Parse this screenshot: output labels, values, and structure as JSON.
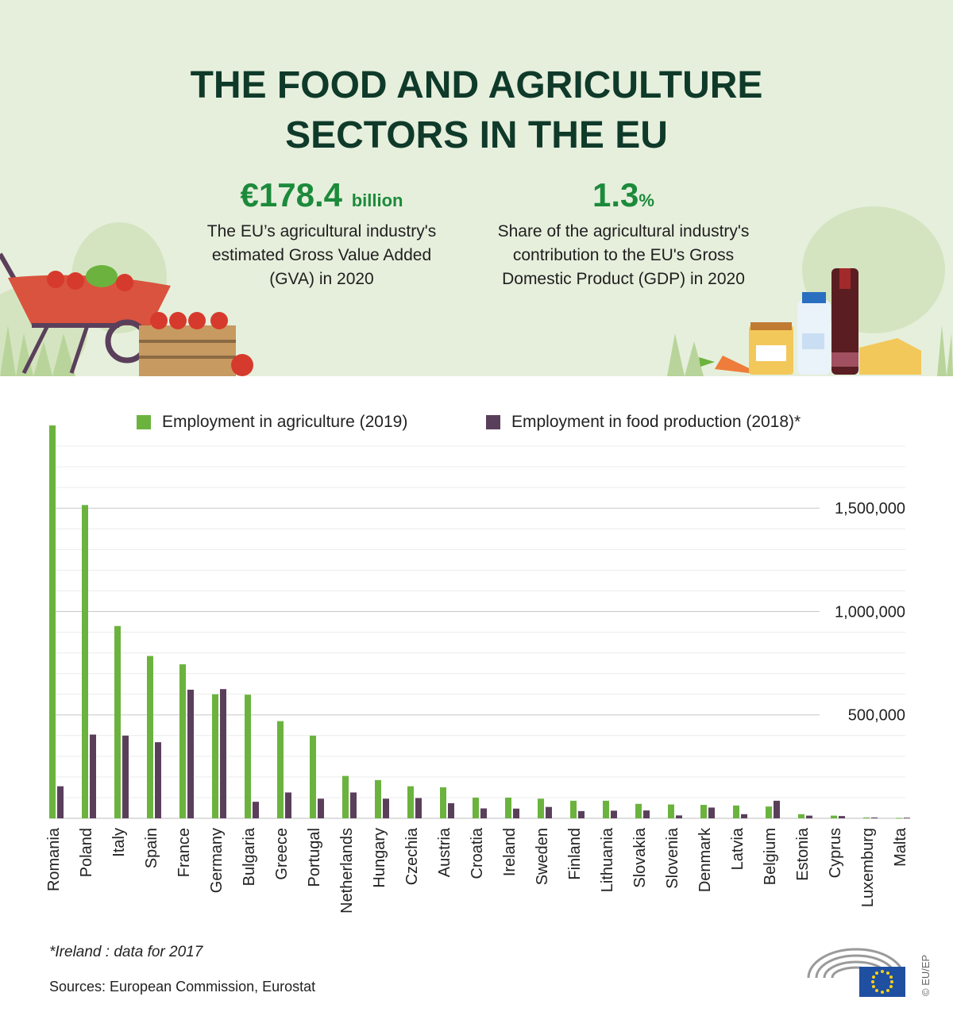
{
  "title_line1": "THE FOOD AND AGRICULTURE",
  "title_line2": "SECTORS IN THE EU",
  "stat_gva": {
    "value": "€178.4",
    "unit": "billion",
    "line1": "The EU’s agricultural industry's",
    "line2": "estimated Gross Value Added",
    "line3": "(GVA) in 2020"
  },
  "stat_gdp": {
    "value": "1.3",
    "unit": "%",
    "line1": "Share of the agricultural industry's",
    "line2": "contribution to the EU's Gross",
    "line3": "Domestic Product (GDP) in 2020"
  },
  "footnote": "*Ireland : data for 2017",
  "sources": "Sources: European Commission, Eurostat",
  "credit": "© EU/EP",
  "colors": {
    "agriculture": "#6bb33e",
    "food": "#5a3f5b",
    "title": "#0f3a2a",
    "accent": "#1c8a3b",
    "header_bg": "#e6efdc"
  },
  "chart_data": {
    "type": "bar",
    "categories": [
      "Romania",
      "Poland",
      "Italy",
      "Spain",
      "France",
      "Germany",
      "Bulgaria",
      "Greece",
      "Portugal",
      "Netherlands",
      "Hungary",
      "Czechia",
      "Austria",
      "Croatia",
      "Ireland",
      "Sweden",
      "Finland",
      "Lithuania",
      "Slovakia",
      "Slovenia",
      "Denmark",
      "Latvia",
      "Belgium",
      "Estonia",
      "Cyprus",
      "Luxemburg",
      "Malta"
    ],
    "series": [
      {
        "name": "Employment in agriculture (2019)",
        "values": [
          1900000,
          1515000,
          930000,
          785000,
          745000,
          600000,
          598000,
          470000,
          400000,
          205000,
          185000,
          155000,
          150000,
          100000,
          100000,
          95000,
          85000,
          85000,
          70000,
          67000,
          65000,
          62000,
          57000,
          20000,
          13000,
          4000,
          2000
        ]
      },
      {
        "name": "Employment in food production (2018)*",
        "values": [
          155000,
          405000,
          400000,
          368000,
          622000,
          625000,
          80000,
          125000,
          95000,
          125000,
          95000,
          98000,
          73000,
          48000,
          47000,
          55000,
          35000,
          37000,
          38000,
          14000,
          52000,
          20000,
          85000,
          13000,
          11000,
          4000,
          3000
        ]
      }
    ],
    "yticks": [
      "500,000",
      "1,000,000",
      "1,500,000"
    ],
    "ytick_values": [
      500000,
      1000000,
      1500000
    ],
    "ylim": [
      0,
      1900000
    ],
    "grid": true,
    "legend_position": "top"
  }
}
